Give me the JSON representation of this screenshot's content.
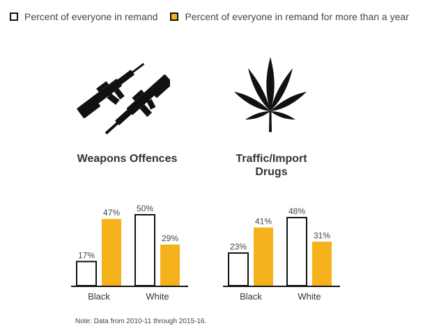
{
  "legend": [
    {
      "label": "Percent of everyone in remand",
      "color": "#ffffff"
    },
    {
      "label": "Percent of everyone in remand for more than a year",
      "color": "#f5b21c"
    }
  ],
  "icons": [
    "rifles-icon",
    "cannabis-leaf-icon"
  ],
  "note": "Note: Data from 2010-11 through 2015-16.",
  "chart_data": [
    {
      "type": "bar",
      "title": "Weapons Offences",
      "categories": [
        "Black",
        "White"
      ],
      "series": [
        {
          "name": "Percent of everyone in remand",
          "values": [
            17,
            50
          ],
          "color": "#ffffff"
        },
        {
          "name": "Percent of everyone in remand for more than a year",
          "values": [
            47,
            29
          ],
          "color": "#f5b21c"
        }
      ],
      "data_labels": [
        [
          "17%",
          "47%"
        ],
        [
          "50%",
          "29%"
        ]
      ],
      "ylim": [
        0,
        50
      ]
    },
    {
      "type": "bar",
      "title": "Traffic/Import Drugs",
      "categories": [
        "Black",
        "White"
      ],
      "series": [
        {
          "name": "Percent of everyone in remand",
          "values": [
            23,
            48
          ],
          "color": "#ffffff"
        },
        {
          "name": "Percent of everyone in remand for more than a year",
          "values": [
            41,
            31
          ],
          "color": "#f5b21c"
        }
      ],
      "data_labels": [
        [
          "23%",
          "41%"
        ],
        [
          "48%",
          "31%"
        ]
      ],
      "ylim": [
        0,
        50
      ]
    }
  ]
}
